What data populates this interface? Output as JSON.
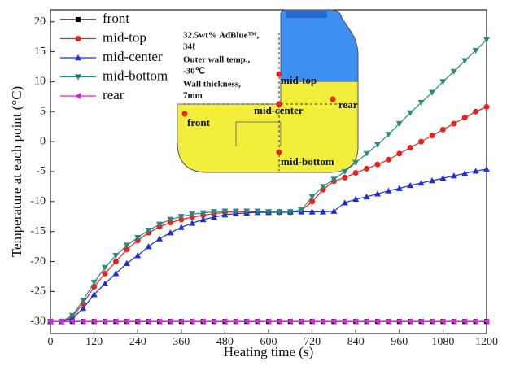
{
  "chart_data": {
    "type": "line",
    "xlabel": "Heating time (s)",
    "ylabel": "Temperature at each point (°C)",
    "xlim": [
      0,
      1200
    ],
    "ylim": [
      -32,
      22
    ],
    "xticks": [
      0,
      120,
      240,
      360,
      480,
      600,
      720,
      840,
      960,
      1080,
      1200
    ],
    "yticks": [
      -30,
      -25,
      -20,
      -15,
      -10,
      -5,
      0,
      5,
      10,
      15,
      20
    ],
    "legend": "upper left",
    "x": [
      0,
      30,
      60,
      90,
      120,
      150,
      180,
      210,
      240,
      270,
      300,
      330,
      360,
      390,
      420,
      450,
      480,
      510,
      540,
      570,
      600,
      630,
      660,
      690,
      720,
      750,
      780,
      810,
      840,
      870,
      900,
      930,
      960,
      990,
      1020,
      1050,
      1080,
      1110,
      1140,
      1170,
      1200
    ],
    "series": [
      {
        "name": "front",
        "color": "#000000",
        "marker": "square",
        "values": [
          -30,
          -30,
          -30,
          -30,
          -30,
          -30,
          -30,
          -30,
          -30,
          -30,
          -30,
          -30,
          -30,
          -30,
          -30,
          -30,
          -30,
          -30,
          -30,
          -30,
          -30,
          -30,
          -30,
          -30,
          -30,
          -30,
          -30,
          -30,
          -30,
          -30,
          -30,
          -30,
          -30,
          -30,
          -30,
          -30,
          -30,
          -30,
          -30,
          -30,
          -30
        ]
      },
      {
        "name": "mid-top",
        "color": "#e8231e",
        "marker": "circle",
        "values": [
          -30,
          -30,
          -29.2,
          -27,
          -24.2,
          -22,
          -20,
          -18,
          -16.5,
          -15.2,
          -14.2,
          -13.5,
          -13,
          -12.6,
          -12.3,
          -12,
          -11.8,
          -11.7,
          -11.7,
          -11.7,
          -11.8,
          -11.8,
          -11.8,
          -11.5,
          -10,
          -8,
          -6.6,
          -6,
          -5.2,
          -4.5,
          -3.8,
          -3,
          -2,
          -1,
          0,
          1,
          2,
          3,
          4,
          5,
          5.8
        ]
      },
      {
        "name": "mid-center",
        "color": "#1c2fd6",
        "marker": "triangle-up",
        "values": [
          -30,
          -30,
          -29.5,
          -27.8,
          -25.5,
          -23.7,
          -22,
          -20.3,
          -19,
          -17.5,
          -16.2,
          -15.2,
          -14.3,
          -13.6,
          -13,
          -12.6,
          -12.2,
          -12,
          -11.9,
          -11.8,
          -11.8,
          -11.7,
          -11.7,
          -11.7,
          -11.7,
          -11.7,
          -11.6,
          -10.2,
          -9.6,
          -9.2,
          -8.7,
          -8.2,
          -7.8,
          -7.3,
          -6.9,
          -6.5,
          -6.1,
          -5.7,
          -5.3,
          -4.9,
          -4.6
        ]
      },
      {
        "name": "mid-bottom",
        "color": "#2a8a86",
        "marker": "triangle-down",
        "values": [
          -30,
          -30,
          -29,
          -26.5,
          -23.5,
          -21,
          -19,
          -17.3,
          -16,
          -14.8,
          -13.8,
          -13,
          -12.5,
          -12.1,
          -11.9,
          -11.7,
          -11.6,
          -11.6,
          -11.6,
          -11.6,
          -11.7,
          -11.7,
          -11.7,
          -11.4,
          -9.2,
          -7.5,
          -6.3,
          -5,
          -3.5,
          -2,
          -0.5,
          1.2,
          3,
          4.8,
          6.5,
          8.2,
          10,
          11.7,
          13.5,
          15.2,
          17
        ]
      },
      {
        "name": "rear",
        "color": "#e020e0",
        "marker": "triangle-left",
        "values": [
          -30,
          -30,
          -30,
          -30,
          -30,
          -30,
          -30,
          -30,
          -30,
          -30,
          -30,
          -30,
          -30,
          -30,
          -30,
          -30,
          -30,
          -30,
          -30,
          -30,
          -30,
          -30,
          -30,
          -30,
          -30,
          -30,
          -30,
          -30,
          -30,
          -30,
          -30,
          -30,
          -30,
          -30,
          -30,
          -30,
          -30,
          -30,
          -30,
          -30,
          -30
        ]
      }
    ],
    "inset": {
      "notes": [
        "32.5wt% AdBlue™,",
        "34ℓ",
        "Outer wall temp.,",
        "-30℃",
        "Wall thickness,",
        "7mm"
      ],
      "points": [
        "mid-top",
        "mid-center",
        "rear",
        "front",
        "mid-bottom"
      ]
    }
  }
}
